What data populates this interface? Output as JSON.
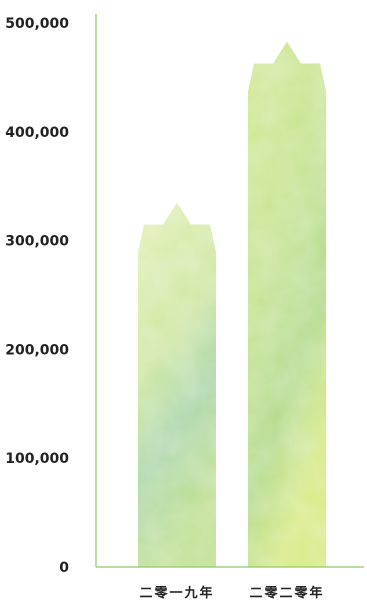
{
  "chart_data": {
    "type": "bar",
    "categories": [
      "二零一九年",
      "二零二零年"
    ],
    "values": [
      335000,
      483000
    ],
    "ylim": [
      0,
      500000
    ],
    "yticks": [
      0,
      100000,
      200000,
      300000,
      400000,
      500000
    ],
    "ytick_labels": [
      "0",
      "100,000",
      "200,000",
      "300,000",
      "400,000",
      "500,000"
    ],
    "grid": false,
    "legend": "none"
  },
  "colors": {
    "axis": "#8fc86a",
    "bar_light": "#e4f1b4",
    "bar_mid": "#c5e38a",
    "bar_deep": "#a8d48a",
    "bar_teal": "#9fd1a8",
    "text": "#222222"
  }
}
